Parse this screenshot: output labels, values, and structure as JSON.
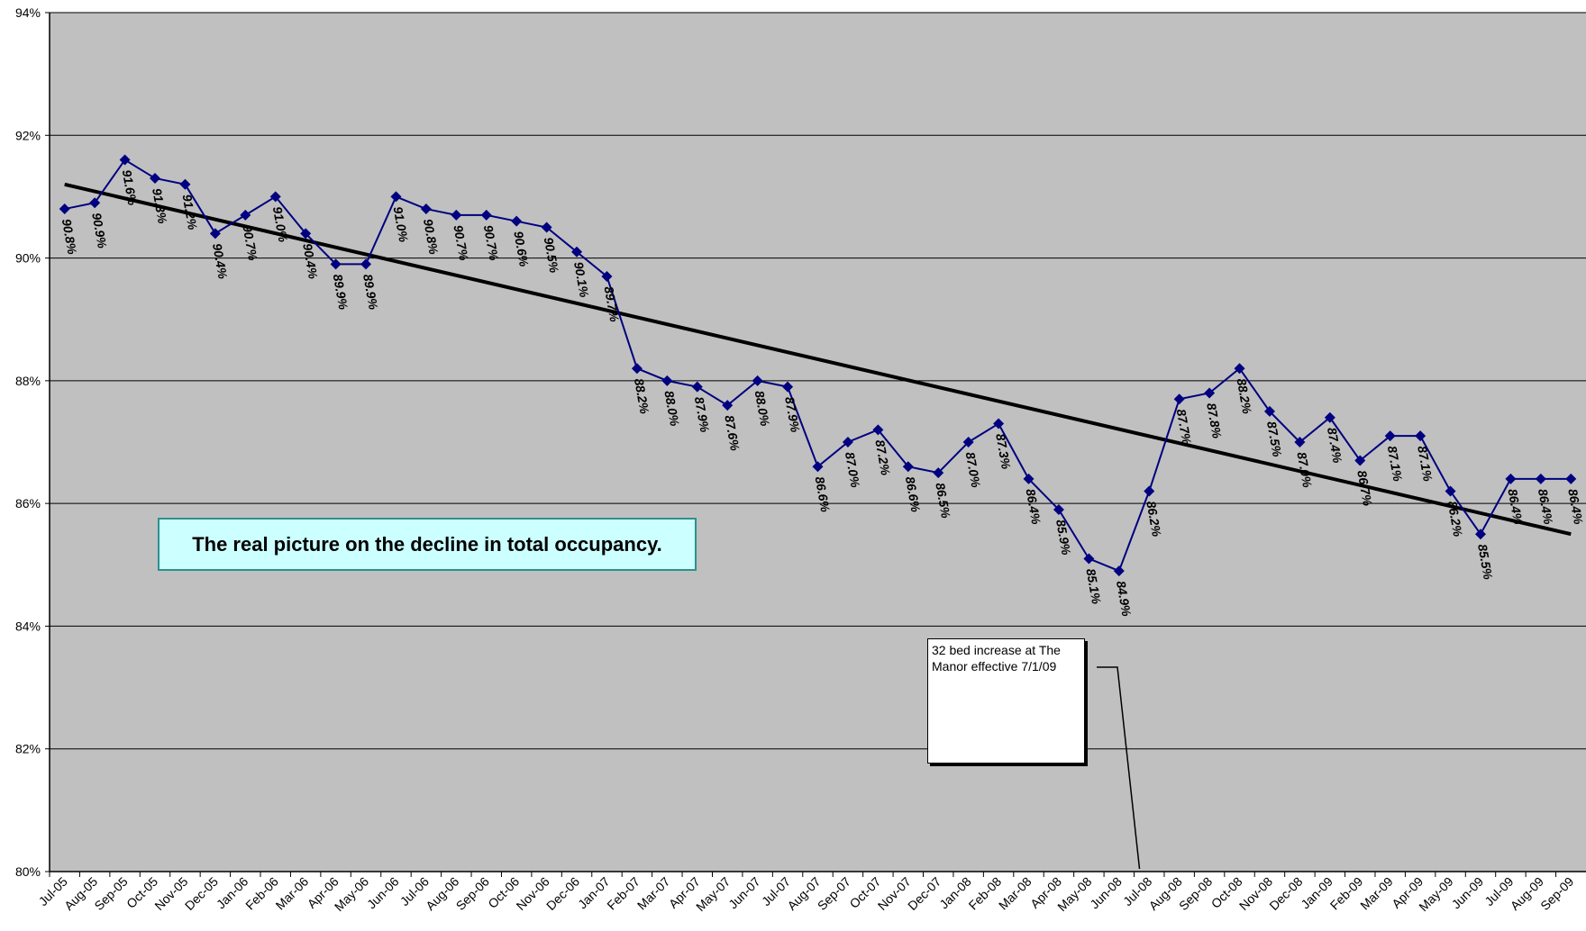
{
  "chart_data": {
    "type": "line",
    "title": "The real picture on the decline in total occupancy.",
    "xlabel": "",
    "ylabel": "",
    "ylim": [
      80,
      94
    ],
    "yticks": [
      80,
      82,
      84,
      86,
      88,
      90,
      92,
      94
    ],
    "ytick_labels": [
      "80%",
      "82%",
      "84%",
      "86%",
      "88%",
      "90%",
      "92%",
      "94%"
    ],
    "grid": true,
    "legend": "none",
    "categories": [
      "Jul-05",
      "Aug-05",
      "Sep-05",
      "Oct-05",
      "Nov-05",
      "Dec-05",
      "Jan-06",
      "Feb-06",
      "Mar-06",
      "Apr-06",
      "May-06",
      "Jun-06",
      "Jul-06",
      "Aug-06",
      "Sep-06",
      "Oct-06",
      "Nov-06",
      "Dec-06",
      "Jan-07",
      "Feb-07",
      "Mar-07",
      "Apr-07",
      "May-07",
      "Jun-07",
      "Jul-07",
      "Aug-07",
      "Sep-07",
      "Oct-07",
      "Nov-07",
      "Dec-07",
      "Jan-08",
      "Feb-08",
      "Mar-08",
      "Apr-08",
      "May-08",
      "Jun-08",
      "Jul-08",
      "Aug-08",
      "Sep-08",
      "Oct-08",
      "Nov-08",
      "Dec-08",
      "Jan-09",
      "Feb-09",
      "Mar-09",
      "Apr-09",
      "May-09",
      "Jun-09",
      "Jul-09",
      "Aug-09",
      "Sep-09"
    ],
    "series": [
      {
        "color": "#000080",
        "marker": "diamond",
        "values": [
          90.8,
          90.9,
          91.6,
          91.3,
          91.2,
          90.4,
          90.7,
          91.0,
          90.4,
          89.9,
          89.9,
          91.0,
          90.8,
          90.7,
          90.7,
          90.6,
          90.5,
          90.1,
          89.7,
          88.2,
          88.0,
          87.9,
          87.6,
          88.0,
          87.9,
          86.6,
          87.0,
          87.2,
          86.6,
          86.5,
          87.0,
          87.3,
          86.4,
          85.9,
          85.1,
          84.9,
          86.2,
          87.7,
          87.8,
          88.2,
          87.5,
          87.0,
          87.4,
          86.7,
          87.1,
          87.1,
          86.2,
          85.5,
          86.4,
          86.4,
          86.4
        ],
        "labels": [
          "90.8%",
          "90.9%",
          "91.6%",
          "91.3%",
          "91.2%",
          "90.4%",
          "90.7%",
          "91.0%",
          "90.4%",
          "89.9%",
          "89.9%",
          "91.0%",
          "90.8%",
          "90.7%",
          "90.7%",
          "90.6%",
          "90.5%",
          "90.1%",
          "89.7%",
          "88.2%",
          "88.0%",
          "87.9%",
          "87.6%",
          "88.0%",
          "87.9%",
          "86.6%",
          "87.0%",
          "87.2%",
          "86.6%",
          "86.5%",
          "87.0%",
          "87.3%",
          "86.4%",
          "85.9%",
          "85.1%",
          "84.9%",
          "86.2%",
          "87.7%",
          "87.8%",
          "88.2%",
          "87.5%",
          "87.0%",
          "87.4%",
          "86.7%",
          "87.1%",
          "87.1%",
          "86.2%",
          "85.5%",
          "86.4%",
          "86.4%",
          "86.4%"
        ]
      }
    ],
    "trendline": {
      "color": "#000000",
      "start": 91.2,
      "end": 85.5
    },
    "annotations": [
      {
        "text": "32 bed increase at The Manor effective 7/1/09",
        "points_to": "Jul-08"
      }
    ]
  },
  "colors": {
    "plot_background": "#c0c0c0",
    "gridline": "#000000",
    "series_line": "#000080",
    "trendline": "#000000",
    "title_box_fill": "#ccffff",
    "title_box_border": "#2f8f8f"
  }
}
